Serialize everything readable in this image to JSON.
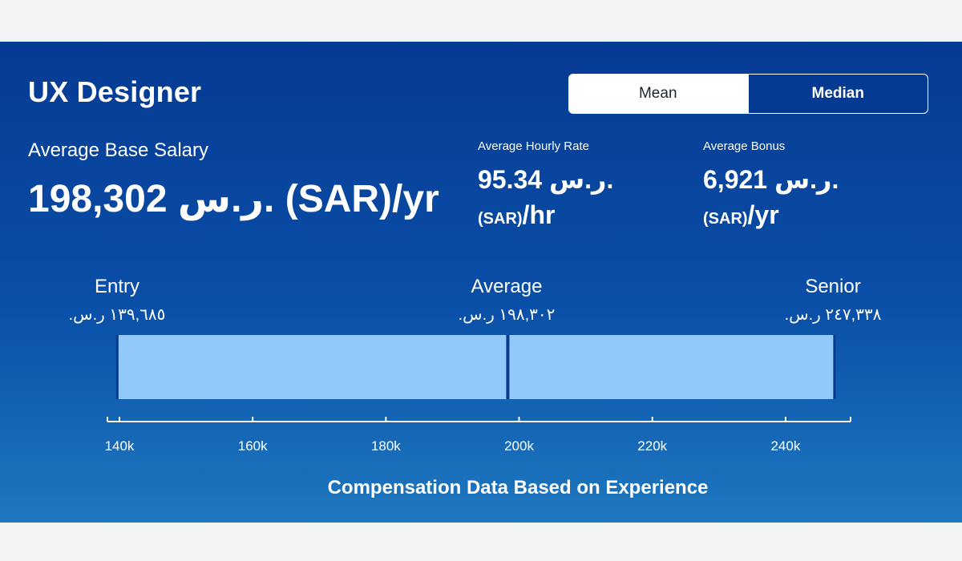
{
  "header": {
    "title": "UX Designer",
    "toggle": {
      "mean_label": "Mean",
      "median_label": "Median",
      "selected": "Mean"
    }
  },
  "stats": {
    "base_label": "Average Base Salary",
    "base_value": "198,302 ر.س. (SAR)/yr",
    "hourly_label": "Average Hourly Rate",
    "hourly_amount": "95.34 ر.س.",
    "hourly_unit": "(SAR)",
    "hourly_per": "/hr",
    "bonus_label": "Average Bonus",
    "bonus_amount": "6,921 ر.س.",
    "bonus_unit": "(SAR)",
    "bonus_per": "/yr"
  },
  "levels": {
    "entry_label": "Entry",
    "entry_value": "١٣٩,٦٨٥ ر.س.",
    "average_label": "Average",
    "average_value": "١٩٨,٣٠٢ ر.س.",
    "senior_label": "Senior",
    "senior_value": "٢٤٧,٣٣٨ ر.س."
  },
  "chart_data": {
    "type": "bar",
    "orientation": "horizontal-range",
    "xlabel": "Compensation Data Based on Experience",
    "xlim": [
      140000,
      250000
    ],
    "ticks": [
      {
        "value": 140000,
        "label": "140k"
      },
      {
        "value": 160000,
        "label": "160k"
      },
      {
        "value": 180000,
        "label": "180k"
      },
      {
        "value": 200000,
        "label": "200k"
      },
      {
        "value": 220000,
        "label": "220k"
      },
      {
        "value": 240000,
        "label": "240k"
      }
    ],
    "range": {
      "min": 139685,
      "average": 198302,
      "max": 247338
    },
    "colors": {
      "bar": "#93c9fa",
      "marker": "#0a3a8f",
      "axis": "#ffffff"
    }
  }
}
